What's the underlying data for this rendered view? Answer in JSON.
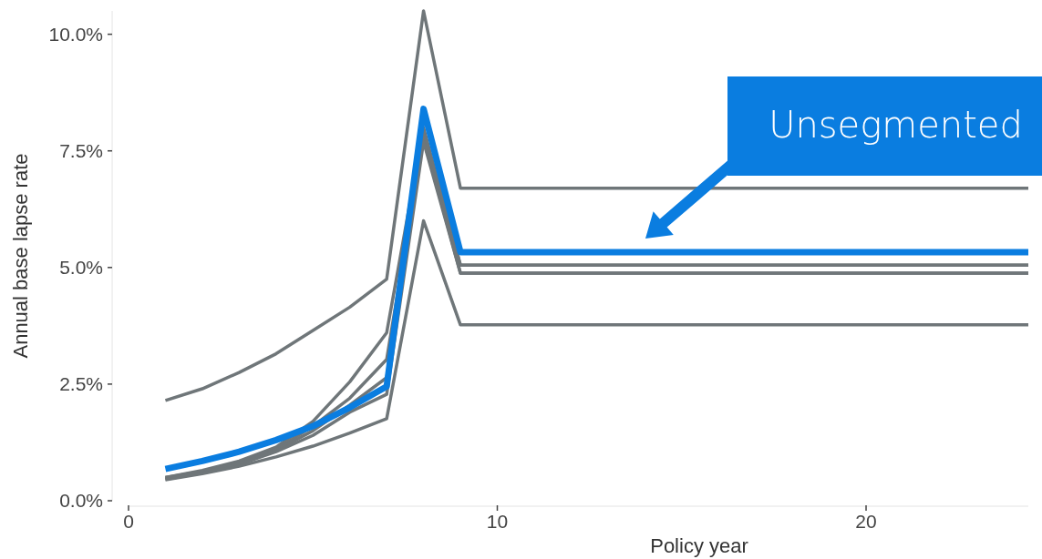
{
  "chart_data": {
    "type": "line",
    "xlabel": "Policy year",
    "ylabel": "Annual base lapse rate",
    "x": [
      1,
      2,
      3,
      4,
      5,
      6,
      7,
      8,
      9,
      24.4
    ],
    "xlim": [
      0,
      24.4
    ],
    "xticks": [
      0,
      10,
      20
    ],
    "ylim": [
      0,
      10.5
    ],
    "yticks": [
      {
        "value": 0,
        "label": "0.0%"
      },
      {
        "value": 2.5,
        "label": "2.5%"
      },
      {
        "value": 5,
        "label": "5.0%"
      },
      {
        "value": 7.5,
        "label": "7.5%"
      },
      {
        "value": 10,
        "label": "10.0%"
      }
    ],
    "grid": false,
    "marker": "none",
    "line_style": "solid",
    "series": [
      {
        "color": "#6f7679",
        "values": [
          2.15,
          2.4,
          2.75,
          3.15,
          3.65,
          4.15,
          4.75,
          10.5,
          6.7,
          6.7
        ]
      },
      {
        "color": "#6f7679",
        "values": [
          0.5,
          0.65,
          0.85,
          1.15,
          1.7,
          2.55,
          3.6,
          8.0,
          5.05,
          5.05
        ]
      },
      {
        "color": "#6f7679",
        "values": [
          0.5,
          0.63,
          0.82,
          1.1,
          1.6,
          2.2,
          3.03,
          7.8,
          4.88,
          4.88
        ]
      },
      {
        "color": "#6f7679",
        "values": [
          0.48,
          0.62,
          0.8,
          1.08,
          1.5,
          2.05,
          2.64,
          7.9,
          5.05,
          5.05
        ]
      },
      {
        "color": "#6f7679",
        "values": [
          0.46,
          0.6,
          0.78,
          1.05,
          1.4,
          1.9,
          2.28,
          7.7,
          4.88,
          4.88
        ]
      },
      {
        "color": "#6f7679",
        "values": [
          0.45,
          0.58,
          0.74,
          0.94,
          1.17,
          1.45,
          1.76,
          6.0,
          3.77,
          3.77
        ]
      },
      {
        "color": "#0a7de0",
        "values": [
          0.68,
          0.85,
          1.05,
          1.3,
          1.6,
          2.0,
          2.45,
          8.4,
          5.33,
          5.33
        ]
      }
    ],
    "annotations": [
      "Unsegmented"
    ]
  }
}
